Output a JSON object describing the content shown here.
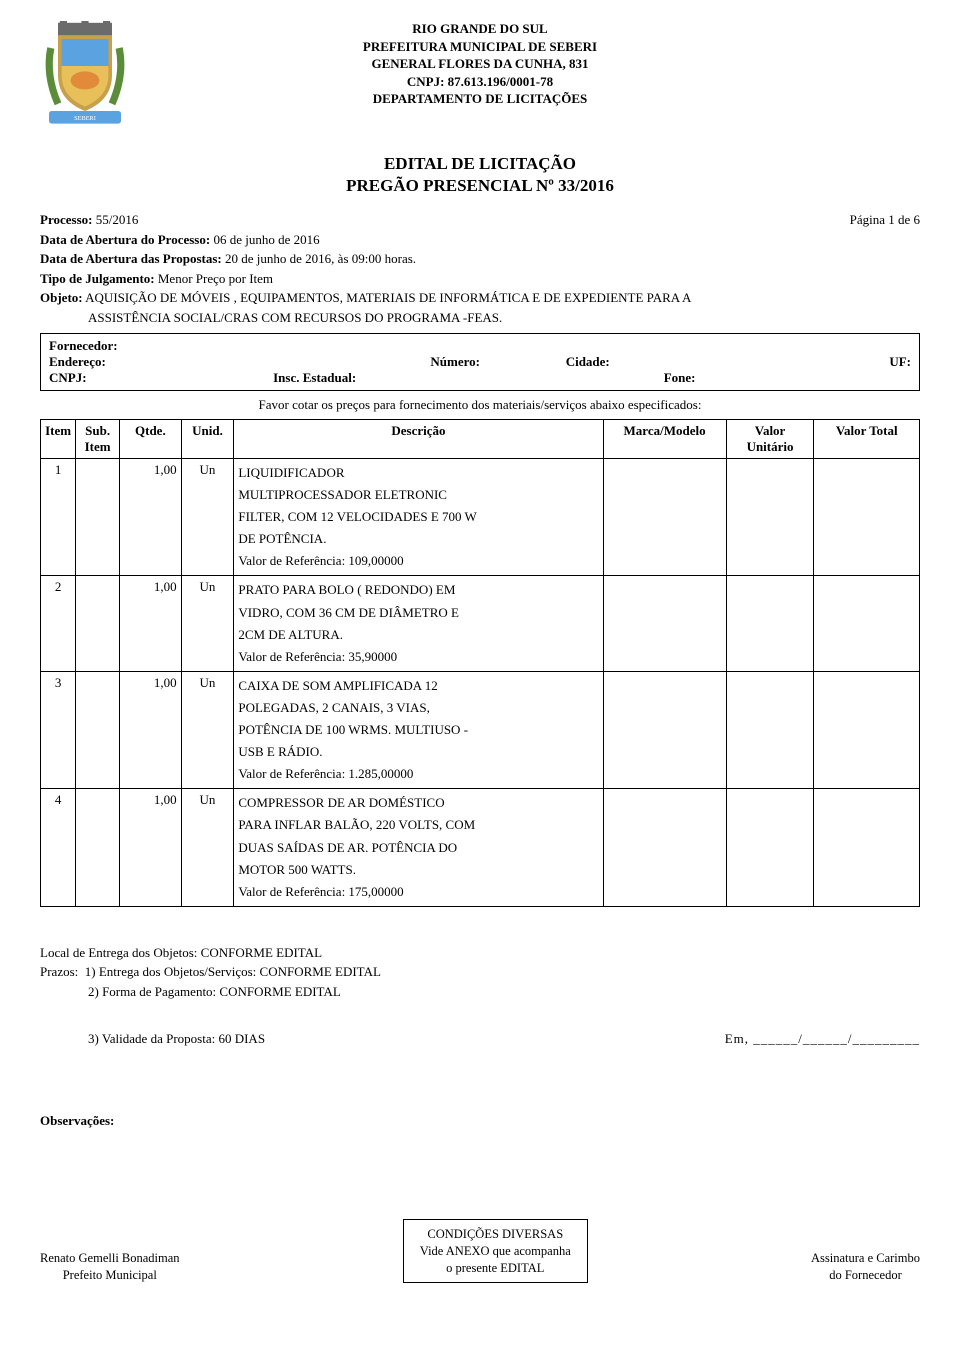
{
  "header": {
    "line1": "RIO GRANDE DO SUL",
    "line2": "PREFEITURA MUNICIPAL DE SEBERI",
    "line3": "GENERAL FLORES DA CUNHA, 831",
    "line4": "CNPJ: 87.613.196/0001-78",
    "line5": "DEPARTAMENTO DE LICITAÇÕES"
  },
  "title": {
    "main": "EDITAL DE LICITAÇÃO",
    "sub": "PREGÃO PRESENCIAL Nº 33/2016"
  },
  "process": {
    "processo_label": "Processo:",
    "processo_value": "55/2016",
    "page_label": "Página 1 de 6",
    "abertura_processo_label": "Data de Abertura do Processo:",
    "abertura_processo_value": "06 de junho de 2016",
    "abertura_propostas_label": "Data de Abertura das Propostas:",
    "abertura_propostas_value": "20 de junho de 2016, às 09:00  horas.",
    "tipo_julgamento_label": "Tipo de Julgamento:",
    "tipo_julgamento_value": "Menor Preço por Item",
    "objeto_label": "Objeto:",
    "objeto_value_1": "AQUISIÇÃO DE MÓVEIS , EQUIPAMENTOS, MATERIAIS DE INFORMÁTICA E DE EXPEDIENTE PARA A",
    "objeto_value_2": "ASSISTÊNCIA SOCIAL/CRAS  COM RECURSOS  DO PROGRAMA -FEAS."
  },
  "supplier": {
    "fornecedor_label": "Fornecedor:",
    "endereco_label": "Endereço:",
    "numero_label": "Número:",
    "cidade_label": "Cidade:",
    "uf_label": "UF:",
    "cnpj_label": "CNPJ:",
    "insc_label": "Insc. Estadual:",
    "fone_label": "Fone:"
  },
  "favor_text": "Favor cotar os preços para fornecimento dos materiais/serviços abaixo especificados:",
  "columns": {
    "item": "Item",
    "sub": "Sub.",
    "sub2": "Item",
    "qtde": "Qtde.",
    "unid": "Unid.",
    "desc": "Descrição",
    "marca": "Marca/Modelo",
    "vu1": "Valor",
    "vu2": "Unitário",
    "vt": "Valor Total"
  },
  "rows": [
    {
      "item": "1",
      "sub": "",
      "qtde": "1,00",
      "unid": "Un",
      "desc_lines": [
        "LIQUIDIFICADOR",
        "MULTIPROCESSADOR ELETRONIC",
        "FILTER, COM 12 VELOCIDADES E 700 W",
        "DE POTÊNCIA.",
        "Valor de Referência: 109,00000"
      ]
    },
    {
      "item": "2",
      "sub": "",
      "qtde": "1,00",
      "unid": "Un",
      "desc_lines": [
        "PRATO PARA BOLO ( REDONDO) EM",
        "VIDRO,  COM 36 CM DE DIÂMETRO E",
        "2CM DE ALTURA.",
        "Valor de Referência: 35,90000"
      ]
    },
    {
      "item": "3",
      "sub": "",
      "qtde": "1,00",
      "unid": "Un",
      "desc_lines": [
        "CAIXA DE SOM AMPLIFICADA 12",
        "POLEGADAS, 2 CANAIS, 3 VIAS,",
        "POTÊNCIA DE 100 WRMS. MULTIUSO -",
        "USB E RÁDIO.",
        "Valor de Referência: 1.285,00000"
      ]
    },
    {
      "item": "4",
      "sub": "",
      "qtde": "1,00",
      "unid": "Un",
      "desc_lines": [
        "COMPRESSOR DE AR DOMÉSTICO",
        "PARA INFLAR BALÃO, 220 VOLTS, COM",
        "DUAS SAÍDAS DE AR. POTÊNCIA DO",
        "MOTOR 500 WATTS.",
        "Valor de Referência: 175,00000"
      ]
    }
  ],
  "footer": {
    "local": "Local de Entrega dos Objetos: CONFORME EDITAL",
    "prazos_label": "Prazos:",
    "prazo1": "1)  Entrega dos Objetos/Serviços: CONFORME EDITAL",
    "prazo2": "2)  Forma de Pagamento: CONFORME EDITAL",
    "prazo3": "3)  Validade da Proposta: 60 DIAS",
    "em": "Em, ______/______/_________",
    "obs": "Observações:",
    "sig_left_1": "Renato Gemelli Bonadiman",
    "sig_left_2": "Prefeito Municipal",
    "cond_1": "CONDIÇÕES DIVERSAS",
    "cond_2": "Vide ANEXO que acompanha",
    "cond_3": "o presente EDITAL",
    "sig_right_1": "Assinatura e Carimbo",
    "sig_right_2": "do Fornecedor"
  },
  "coat_colors": {
    "crown": "#6b6b6b",
    "shield_border": "#c9a04a",
    "shield_top": "#5aa3e0",
    "shield_bottom": "#e7c05a",
    "ribbon": "#5aa3e0",
    "leaves": "#5b8c3a"
  }
}
